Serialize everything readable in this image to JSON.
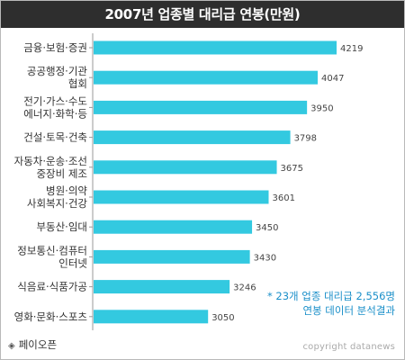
{
  "title": "2007년 업종별 대리급 연봉(만원)",
  "note": [
    "* 23개 업종 대리급 2,556명",
    "연봉 데이터 분석결과"
  ],
  "source": "페이오픈",
  "copyright": "copyright datanews",
  "colors": {
    "bar": "#33c9e0",
    "title_bg": "#2e2e2e",
    "note": "#1a8fc9"
  },
  "chart_data": {
    "type": "bar",
    "orientation": "horizontal",
    "title": "2007년 업종별 대리급 연봉(만원)",
    "categories": [
      [
        "금융·보험·증권"
      ],
      [
        "공공행정·기관",
        "협회"
      ],
      [
        "전기·가스·수도",
        "에너지·화학·등"
      ],
      [
        "건설·토목·건축"
      ],
      [
        "자동차·운송·조선",
        "중장비 제조"
      ],
      [
        "병원·의약",
        "사회복지·건강"
      ],
      [
        "부동산·임대"
      ],
      [
        "정보통신·컴퓨터",
        "인터넷"
      ],
      [
        "식음료·식품가공"
      ],
      [
        "영화·문화·스포츠"
      ]
    ],
    "values": [
      4219,
      4047,
      3950,
      3798,
      3675,
      3601,
      3450,
      3430,
      3246,
      3050
    ],
    "xlim": [
      2500,
      4350
    ],
    "grid": false,
    "legend": "none"
  }
}
